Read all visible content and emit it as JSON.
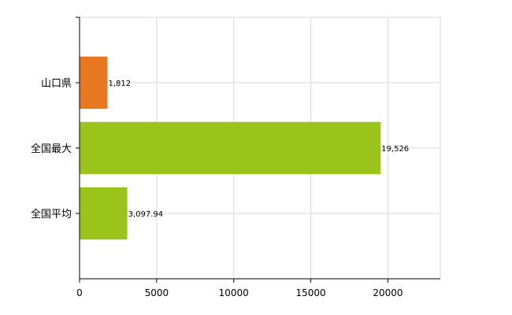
{
  "chart_data": {
    "type": "bar",
    "orientation": "horizontal",
    "categories": [
      "山口県",
      "全国最大",
      "全国平均"
    ],
    "values": [
      1812,
      19526,
      3097.94
    ],
    "value_labels": [
      "1,812",
      "19,526",
      "3,097.94"
    ],
    "colors": [
      "#e87722",
      "#9ac41c",
      "#9ac41c"
    ],
    "xlim": [
      0,
      23400
    ],
    "xticks": [
      0,
      5000,
      10000,
      15000,
      20000
    ],
    "xtick_labels": [
      "0",
      "5000",
      "10000",
      "15000",
      "20000"
    ],
    "grid": true,
    "title": "",
    "xlabel": "",
    "ylabel": ""
  }
}
